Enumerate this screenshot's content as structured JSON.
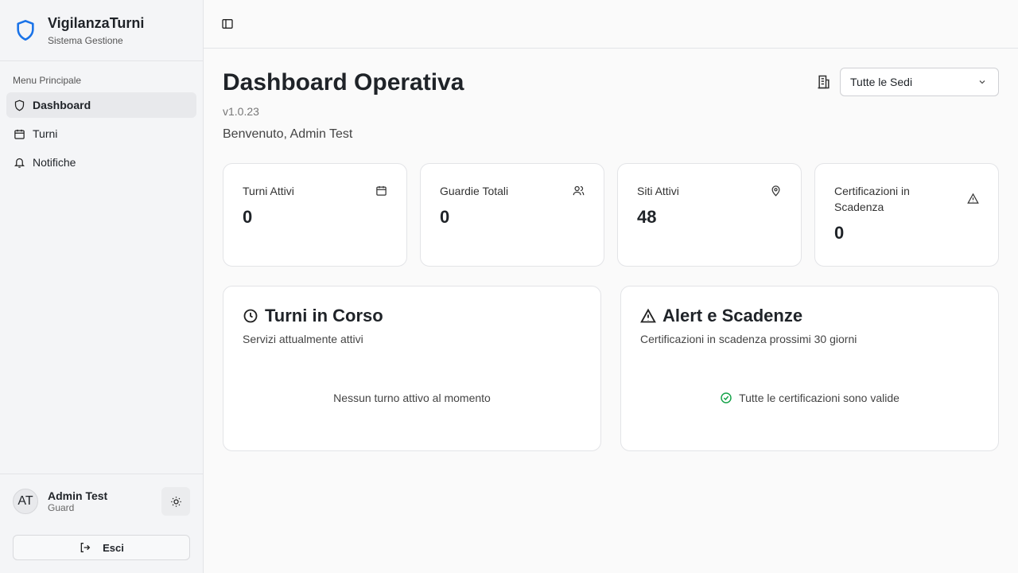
{
  "brand": {
    "title": "VigilanzaTurni",
    "subtitle": "Sistema Gestione",
    "color": "#1a73e8"
  },
  "sidebar": {
    "menu_label": "Menu Principale",
    "items": [
      {
        "label": "Dashboard",
        "icon": "shield-icon",
        "active": true
      },
      {
        "label": "Turni",
        "icon": "calendar-icon"
      },
      {
        "label": "Notifiche",
        "icon": "bell-icon"
      }
    ]
  },
  "user": {
    "initials": "AT",
    "name": "Admin Test",
    "role": "Guard",
    "logout_label": "Esci"
  },
  "header": {
    "title": "Dashboard Operativa",
    "version": "v1.0.23",
    "welcome": "Benvenuto, Admin Test",
    "site_select": "Tutte le Sedi"
  },
  "stats": [
    {
      "label": "Turni Attivi",
      "value": "0",
      "icon": "calendar-icon"
    },
    {
      "label": "Guardie Totali",
      "value": "0",
      "icon": "users-icon"
    },
    {
      "label": "Siti Attivi",
      "value": "48",
      "icon": "map-pin-icon"
    },
    {
      "label": "Certificazioni in Scadenza",
      "value": "0",
      "icon": "alert-triangle-icon"
    }
  ],
  "panels": {
    "shifts": {
      "title": "Turni in Corso",
      "subtitle": "Servizi attualmente attivi",
      "empty": "Nessun turno attivo al momento"
    },
    "alerts": {
      "title": "Alert e Scadenze",
      "subtitle": "Certificazioni in scadenza prossimi 30 giorni",
      "empty": "Tutte le certificazioni sono valide",
      "ok_color": "#16a34a"
    }
  }
}
